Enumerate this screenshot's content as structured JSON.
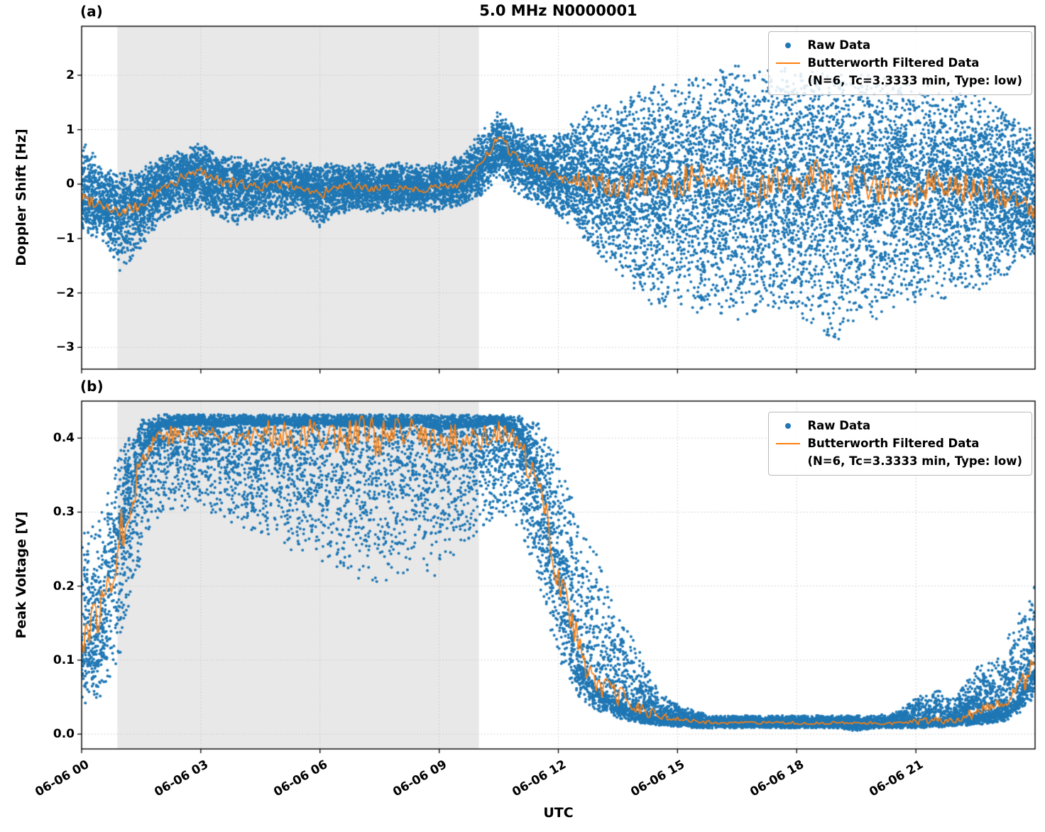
{
  "figure": {
    "title": "5.0 MHz N0000001",
    "xlabel": "UTC",
    "panel_a_label": "(a)",
    "panel_b_label": "(b)",
    "legend": {
      "raw_label": "Raw Data",
      "filtered_label": "Butterworth Filtered Data",
      "filtered_sublabel": "(N=6, Tc=3.3333 min, Type: low)"
    },
    "colors": {
      "raw": "#1f77b4",
      "filtered": "#ff7f0e",
      "shade": "#e8e8e8",
      "grid": "#c8c8c8",
      "spine": "#000000"
    }
  },
  "chart_data": [
    {
      "type": "scatter",
      "panel": "(a)",
      "ylabel": "Doppler Shift [Hz]",
      "ylim": [
        -3.4,
        2.9
      ],
      "yticks": [
        -3,
        -2,
        -1,
        0,
        1,
        2
      ],
      "ytick_labels": [
        "−3",
        "−2",
        "−1",
        "0",
        "1",
        "2"
      ],
      "xlim_hours": [
        0,
        24
      ],
      "xtick_hours": [
        0,
        3,
        6,
        9,
        12,
        15,
        18,
        21
      ],
      "xtick_labels": [
        "06-06 00",
        "06-06 03",
        "06-06 06",
        "06-06 09",
        "06-06 12",
        "06-06 15",
        "06-06 18",
        "06-06 21"
      ],
      "shade_region_hours": [
        0.9,
        10.0
      ],
      "grid": true,
      "legend_position": "upper right",
      "series": {
        "t": [
          0,
          0.5,
          1,
          1.5,
          2,
          2.5,
          3,
          3.5,
          4,
          4.5,
          5,
          5.5,
          6,
          6.5,
          7,
          7.5,
          8,
          8.5,
          9,
          9.5,
          10,
          10.5,
          11,
          11.5,
          12,
          12.5,
          13,
          13.5,
          14,
          14.5,
          15,
          15.5,
          16,
          16.5,
          17,
          17.5,
          18,
          18.5,
          19,
          19.5,
          20,
          20.5,
          21,
          21.5,
          22,
          22.5,
          23,
          23.5,
          24
        ],
        "filtered": [
          -0.25,
          -0.35,
          -0.55,
          -0.4,
          -0.1,
          0.1,
          0.25,
          0.05,
          0,
          -0.05,
          0,
          -0.05,
          -0.2,
          -0.05,
          -0.05,
          -0.1,
          -0.05,
          -0.1,
          -0.05,
          0,
          0.3,
          0.85,
          0.45,
          0.3,
          0.15,
          0.1,
          0,
          -0.1,
          0.05,
          -0.05,
          0,
          0.2,
          -0.15,
          0.1,
          -0.2,
          0.15,
          -0.1,
          0.2,
          -0.25,
          0.1,
          -0.15,
          0.05,
          -0.2,
          0.1,
          -0.1,
          0,
          -0.15,
          -0.3,
          -0.55
        ],
        "scatter_lo": [
          -0.9,
          -1.0,
          -1.65,
          -1.2,
          -0.7,
          -0.5,
          -0.45,
          -0.7,
          -0.75,
          -0.6,
          -0.65,
          -0.5,
          -0.8,
          -0.55,
          -0.5,
          -0.55,
          -0.5,
          -0.5,
          -0.5,
          -0.4,
          -0.25,
          0.1,
          -0.2,
          -0.4,
          -0.6,
          -0.9,
          -1.3,
          -1.6,
          -2.0,
          -2.3,
          -2.2,
          -2.4,
          -2.35,
          -2.5,
          -2.45,
          -2.35,
          -2.5,
          -2.7,
          -3.05,
          -2.45,
          -2.5,
          -2.35,
          -2.25,
          -2.15,
          -2.05,
          -1.95,
          -1.85,
          -1.55,
          -1.35
        ],
        "scatter_hi": [
          0.95,
          0.3,
          0.2,
          0.3,
          0.5,
          0.65,
          0.75,
          0.55,
          0.5,
          0.45,
          0.5,
          0.4,
          0.4,
          0.35,
          0.4,
          0.35,
          0.4,
          0.35,
          0.4,
          0.55,
          0.9,
          1.35,
          1.05,
          0.9,
          0.95,
          1.2,
          1.5,
          1.5,
          1.7,
          1.85,
          1.95,
          2.05,
          2.15,
          2.2,
          2.05,
          2.2,
          2.1,
          2.05,
          2.15,
          2.1,
          2.0,
          1.95,
          2.0,
          1.85,
          1.75,
          1.65,
          1.55,
          1.25,
          0.95
        ],
        "scatter_mode": [
          -0.3,
          -0.35,
          -0.45,
          -0.35,
          -0.1,
          0.05,
          0.15,
          0,
          -0.05,
          -0.05,
          0,
          -0.05,
          -0.1,
          -0.05,
          -0.05,
          -0.08,
          -0.05,
          -0.08,
          -0.05,
          0,
          0.3,
          0.7,
          0.45,
          0.25,
          0.1,
          0.05,
          0,
          -0.05,
          0,
          -0.1,
          -0.1,
          0,
          -0.1,
          0,
          -0.1,
          0,
          -0.1,
          0,
          -0.1,
          0,
          -0.1,
          0,
          -0.1,
          0,
          -0.1,
          -0.1,
          -0.15,
          -0.25,
          -0.45
        ]
      }
    },
    {
      "type": "scatter",
      "panel": "(b)",
      "ylabel": "Peak Voltage [V]",
      "ylim": [
        -0.02,
        0.45
      ],
      "yticks": [
        0,
        0.1,
        0.2,
        0.3,
        0.4
      ],
      "ytick_labels": [
        "0.0",
        "0.1",
        "0.2",
        "0.3",
        "0.4"
      ],
      "xlim_hours": [
        0,
        24
      ],
      "xtick_hours": [
        0,
        3,
        6,
        9,
        12,
        15,
        18,
        21
      ],
      "xtick_labels": [
        "06-06 00",
        "06-06 03",
        "06-06 06",
        "06-06 09",
        "06-06 12",
        "06-06 15",
        "06-06 18",
        "06-06 21"
      ],
      "shade_region_hours": [
        0.9,
        10.0
      ],
      "grid": true,
      "legend_position": "upper right",
      "series": {
        "t": [
          0,
          0.5,
          1,
          1.5,
          2,
          2.5,
          3,
          3.5,
          4,
          4.5,
          5,
          5.5,
          6,
          6.5,
          7,
          7.5,
          8,
          8.5,
          9,
          9.5,
          10,
          10.5,
          11,
          11.5,
          12,
          12.5,
          13,
          13.5,
          14,
          14.5,
          15,
          15.5,
          16,
          16.5,
          17,
          17.5,
          18,
          18.5,
          19,
          19.5,
          20,
          20.5,
          21,
          21.5,
          22,
          22.5,
          23,
          23.5,
          24
        ],
        "filtered": [
          0.13,
          0.17,
          0.27,
          0.37,
          0.41,
          0.4,
          0.41,
          0.4,
          0.41,
          0.4,
          0.41,
          0.4,
          0.41,
          0.4,
          0.41,
          0.4,
          0.4,
          0.41,
          0.39,
          0.4,
          0.4,
          0.41,
          0.39,
          0.33,
          0.22,
          0.12,
          0.07,
          0.05,
          0.035,
          0.025,
          0.02,
          0.017,
          0.015,
          0.015,
          0.015,
          0.015,
          0.015,
          0.015,
          0.015,
          0.015,
          0.015,
          0.015,
          0.016,
          0.018,
          0.02,
          0.03,
          0.035,
          0.05,
          0.1
        ],
        "scatter_lo": [
          0.04,
          0.05,
          0.1,
          0.24,
          0.3,
          0.3,
          0.31,
          0.29,
          0.28,
          0.27,
          0.26,
          0.24,
          0.23,
          0.22,
          0.21,
          0.2,
          0.21,
          0.22,
          0.21,
          0.24,
          0.27,
          0.3,
          0.28,
          0.2,
          0.1,
          0.05,
          0.03,
          0.02,
          0.015,
          0.012,
          0.01,
          0.008,
          0.008,
          0.008,
          0.008,
          0.008,
          0.008,
          0.008,
          0.008,
          0.004,
          0.008,
          0.008,
          0.008,
          0.009,
          0.01,
          0.012,
          0.015,
          0.02,
          0.05
        ],
        "scatter_hi": [
          0.27,
          0.3,
          0.39,
          0.425,
          0.432,
          0.432,
          0.432,
          0.432,
          0.432,
          0.432,
          0.432,
          0.432,
          0.432,
          0.432,
          0.432,
          0.432,
          0.432,
          0.432,
          0.432,
          0.432,
          0.432,
          0.432,
          0.43,
          0.42,
          0.38,
          0.3,
          0.24,
          0.16,
          0.12,
          0.06,
          0.04,
          0.03,
          0.025,
          0.025,
          0.025,
          0.025,
          0.025,
          0.025,
          0.025,
          0.025,
          0.025,
          0.03,
          0.05,
          0.06,
          0.05,
          0.09,
          0.1,
          0.15,
          0.21
        ],
        "scatter_mode": [
          0.12,
          0.15,
          0.28,
          0.38,
          0.415,
          0.415,
          0.42,
          0.415,
          0.42,
          0.415,
          0.42,
          0.415,
          0.42,
          0.415,
          0.42,
          0.415,
          0.415,
          0.42,
          0.41,
          0.415,
          0.415,
          0.42,
          0.4,
          0.34,
          0.22,
          0.1,
          0.06,
          0.045,
          0.03,
          0.022,
          0.018,
          0.016,
          0.015,
          0.015,
          0.015,
          0.015,
          0.015,
          0.015,
          0.015,
          0.015,
          0.015,
          0.015,
          0.016,
          0.016,
          0.018,
          0.025,
          0.03,
          0.045,
          0.09
        ]
      }
    }
  ]
}
